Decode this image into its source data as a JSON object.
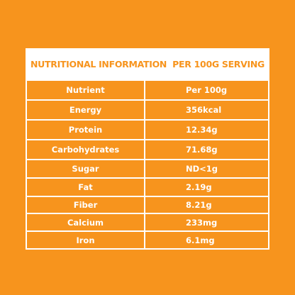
{
  "header": {
    "title": "NUTRITIONAL INFORMATION  PER 100G SERVING"
  },
  "table": {
    "columns": [
      "Nutrient",
      "Per 100g"
    ],
    "rows": [
      [
        "Energy",
        "356kcal"
      ],
      [
        "Protein",
        "12.34g"
      ],
      [
        "Carbohydrates",
        "71.68g"
      ],
      [
        "Sugar",
        "ND<1g"
      ],
      [
        "Fat",
        "2.19g"
      ],
      [
        "Fiber",
        "8.21g"
      ],
      [
        "Calcium",
        "233mg"
      ],
      [
        "Iron",
        "6.1mg"
      ]
    ]
  }
}
